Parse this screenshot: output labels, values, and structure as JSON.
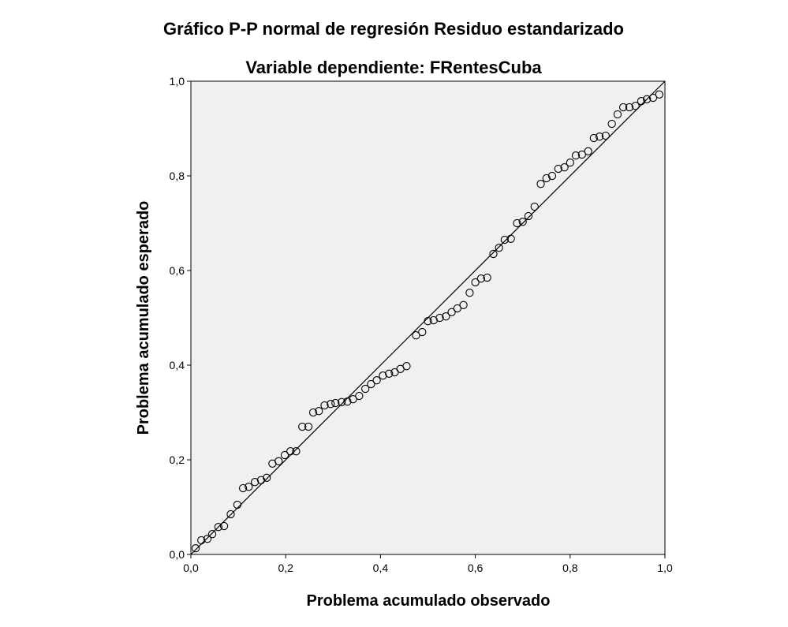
{
  "chart_data": {
    "type": "scatter",
    "title": "Gráfico P-P normal de regresión Residuo estandarizado",
    "subtitle": "Variable dependiente: FRentesCuba",
    "xlabel": "Problema acumulado observado",
    "ylabel": "Problema acumulado esperado",
    "xlim": [
      0,
      1
    ],
    "ylim": [
      0,
      1
    ],
    "x_ticks": [
      "0,0",
      "0,2",
      "0,4",
      "0,6",
      "0,8",
      "1,0"
    ],
    "y_ticks": [
      "0,0",
      "0,2",
      "0,4",
      "0,6",
      "0,8",
      "1,0"
    ],
    "grid": false,
    "plot_background": "#f0f0f0",
    "marker": "open-circle",
    "reference_line": {
      "from": [
        0,
        0
      ],
      "to": [
        1,
        1
      ]
    },
    "points": [
      [
        0.01,
        0.013
      ],
      [
        0.022,
        0.03
      ],
      [
        0.035,
        0.033
      ],
      [
        0.045,
        0.043
      ],
      [
        0.058,
        0.058
      ],
      [
        0.07,
        0.06
      ],
      [
        0.084,
        0.085
      ],
      [
        0.098,
        0.105
      ],
      [
        0.11,
        0.14
      ],
      [
        0.122,
        0.143
      ],
      [
        0.135,
        0.153
      ],
      [
        0.148,
        0.157
      ],
      [
        0.16,
        0.162
      ],
      [
        0.172,
        0.192
      ],
      [
        0.185,
        0.197
      ],
      [
        0.198,
        0.21
      ],
      [
        0.21,
        0.218
      ],
      [
        0.222,
        0.218
      ],
      [
        0.235,
        0.27
      ],
      [
        0.248,
        0.27
      ],
      [
        0.258,
        0.3
      ],
      [
        0.27,
        0.303
      ],
      [
        0.282,
        0.315
      ],
      [
        0.295,
        0.318
      ],
      [
        0.305,
        0.32
      ],
      [
        0.318,
        0.322
      ],
      [
        0.33,
        0.323
      ],
      [
        0.342,
        0.328
      ],
      [
        0.355,
        0.335
      ],
      [
        0.368,
        0.35
      ],
      [
        0.38,
        0.36
      ],
      [
        0.392,
        0.368
      ],
      [
        0.405,
        0.378
      ],
      [
        0.418,
        0.382
      ],
      [
        0.43,
        0.385
      ],
      [
        0.442,
        0.392
      ],
      [
        0.455,
        0.398
      ],
      [
        0.475,
        0.463
      ],
      [
        0.488,
        0.47
      ],
      [
        0.5,
        0.493
      ],
      [
        0.512,
        0.495
      ],
      [
        0.525,
        0.5
      ],
      [
        0.538,
        0.503
      ],
      [
        0.55,
        0.512
      ],
      [
        0.562,
        0.52
      ],
      [
        0.575,
        0.527
      ],
      [
        0.588,
        0.553
      ],
      [
        0.6,
        0.575
      ],
      [
        0.612,
        0.583
      ],
      [
        0.625,
        0.585
      ],
      [
        0.638,
        0.635
      ],
      [
        0.65,
        0.648
      ],
      [
        0.662,
        0.665
      ],
      [
        0.675,
        0.667
      ],
      [
        0.688,
        0.7
      ],
      [
        0.7,
        0.703
      ],
      [
        0.712,
        0.715
      ],
      [
        0.725,
        0.735
      ],
      [
        0.738,
        0.783
      ],
      [
        0.75,
        0.795
      ],
      [
        0.762,
        0.8
      ],
      [
        0.775,
        0.815
      ],
      [
        0.788,
        0.818
      ],
      [
        0.8,
        0.828
      ],
      [
        0.812,
        0.843
      ],
      [
        0.825,
        0.845
      ],
      [
        0.838,
        0.852
      ],
      [
        0.85,
        0.88
      ],
      [
        0.862,
        0.883
      ],
      [
        0.875,
        0.885
      ],
      [
        0.888,
        0.91
      ],
      [
        0.9,
        0.93
      ],
      [
        0.912,
        0.945
      ],
      [
        0.925,
        0.945
      ],
      [
        0.938,
        0.948
      ],
      [
        0.95,
        0.958
      ],
      [
        0.962,
        0.962
      ],
      [
        0.975,
        0.965
      ],
      [
        0.988,
        0.972
      ]
    ]
  }
}
